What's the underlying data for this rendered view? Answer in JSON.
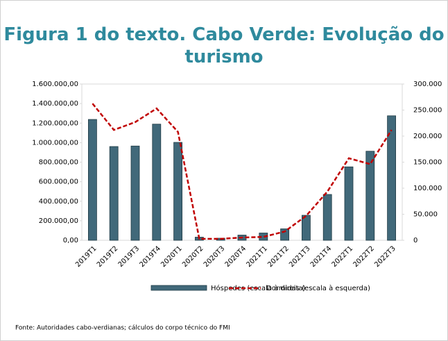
{
  "chart_data": {
    "type": "bar_line",
    "title": "Figura 1 do texto. Cabo Verde: Evolução do turismo",
    "source": "Fonte: Autoridades cabo-verdianas; cálculos do corpo técnico do FMI",
    "categories": [
      "2019T1",
      "2019T2",
      "2019T3",
      "2019T4",
      "2020T1",
      "2020T2",
      "2020T3",
      "2020T4",
      "2021T1",
      "2021T2",
      "2021T3",
      "2021T4",
      "2022T1",
      "2022T2",
      "2022T3"
    ],
    "series": [
      {
        "name": "Hóspedes (escala à direita)",
        "type": "bar",
        "axis": "y2",
        "color": "#41697a",
        "values": [
          232000,
          180000,
          181000,
          223000,
          188000,
          6000,
          4000,
          10000,
          14000,
          22000,
          48000,
          88000,
          141000,
          171000,
          239000
        ]
      },
      {
        "name": "Dormidas (escala à esquerda)",
        "type": "line",
        "axis": "y",
        "color": "#c00000",
        "values": [
          1400000,
          1130000,
          1210000,
          1350000,
          1110000,
          15000,
          15000,
          28000,
          35000,
          90000,
          250000,
          500000,
          840000,
          780000,
          1130000
        ]
      }
    ],
    "ylim": [
      0,
      1600000
    ],
    "yticks": [
      {
        "value": 0,
        "label": "0,00"
      },
      {
        "value": 200000,
        "label": "200.000,00"
      },
      {
        "value": 400000,
        "label": "400.000,00"
      },
      {
        "value": 600000,
        "label": "600.000,00"
      },
      {
        "value": 800000,
        "label": "800.000,00"
      },
      {
        "value": 1000000,
        "label": "1.000.000,00"
      },
      {
        "value": 1200000,
        "label": "1.200.000,00"
      },
      {
        "value": 1400000,
        "label": "1.400.000,00"
      },
      {
        "value": 1600000,
        "label": "1.600.000,00"
      }
    ],
    "y2lim": [
      0,
      300000
    ],
    "y2ticks": [
      0,
      {
        "value": 50000,
        "label": "50.000"
      },
      {
        "value": 100000,
        "label": "100.000"
      },
      {
        "value": 150000,
        "label": "150.000"
      },
      {
        "value": 200000,
        "label": "200.000"
      },
      {
        "value": 250000,
        "label": "250.000"
      },
      {
        "value": 300000,
        "label": "300.000"
      }
    ]
  }
}
